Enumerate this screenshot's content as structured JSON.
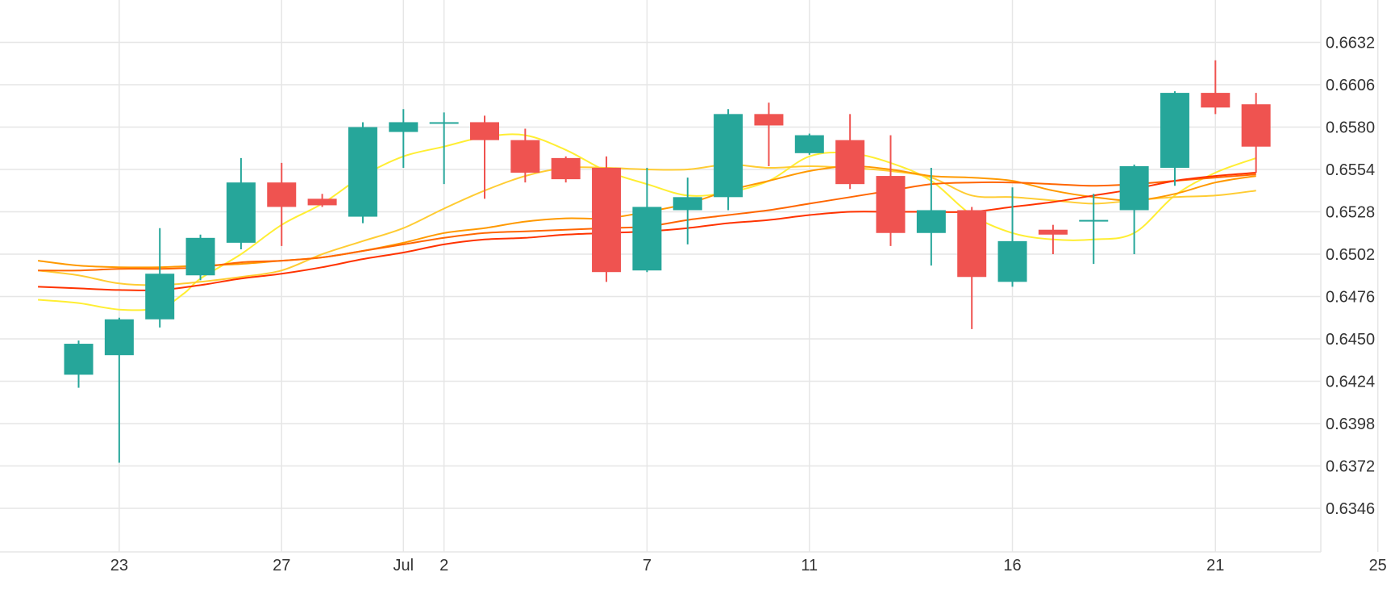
{
  "chart_data": {
    "type": "candlestick",
    "title": "",
    "xlabel": "",
    "ylabel": "",
    "ylim": [
      0.632,
      0.6645
    ],
    "x_tick_labels": [
      {
        "day": 1,
        "label": "23"
      },
      {
        "day": 5,
        "label": "27"
      },
      {
        "day": 8,
        "label": "Jul"
      },
      {
        "day": 9,
        "label": "2"
      },
      {
        "day": 14,
        "label": "7"
      },
      {
        "day": 18,
        "label": "11"
      },
      {
        "day": 23,
        "label": "16"
      },
      {
        "day": 28,
        "label": "21"
      },
      {
        "day": 32,
        "label": "25"
      }
    ],
    "y_tick_labels": [
      "0.6632",
      "0.6606",
      "0.6580",
      "0.6554",
      "0.6528",
      "0.6502",
      "0.6476",
      "0.6450",
      "0.6424",
      "0.6398",
      "0.6372",
      "0.6346"
    ],
    "y_ticks": [
      0.6632,
      0.6606,
      0.658,
      0.6554,
      0.6528,
      0.6502,
      0.6476,
      0.645,
      0.6424,
      0.6398,
      0.6372,
      0.6346
    ],
    "colors": {
      "up": "#26a69a",
      "down": "#ef5350",
      "grid": "#e6e6e6",
      "text": "#333333"
    },
    "candles": [
      {
        "day": 0,
        "open": 0.6428,
        "high": 0.6449,
        "low": 0.642,
        "close": 0.6447
      },
      {
        "day": 1,
        "open": 0.644,
        "high": 0.6463,
        "low": 0.6374,
        "close": 0.6462
      },
      {
        "day": 2,
        "open": 0.6462,
        "high": 0.6518,
        "low": 0.6457,
        "close": 0.649
      },
      {
        "day": 3,
        "open": 0.6489,
        "high": 0.6514,
        "low": 0.6486,
        "close": 0.6512
      },
      {
        "day": 4,
        "open": 0.6509,
        "high": 0.6561,
        "low": 0.6505,
        "close": 0.6546
      },
      {
        "day": 5,
        "open": 0.6546,
        "high": 0.6558,
        "low": 0.6507,
        "close": 0.6531
      },
      {
        "day": 6,
        "open": 0.6536,
        "high": 0.6539,
        "low": 0.6531,
        "close": 0.6532
      },
      {
        "day": 7,
        "open": 0.6525,
        "high": 0.6583,
        "low": 0.6521,
        "close": 0.658
      },
      {
        "day": 8,
        "open": 0.6577,
        "high": 0.6591,
        "low": 0.6555,
        "close": 0.6583
      },
      {
        "day": 9,
        "open": 0.6582,
        "high": 0.6589,
        "low": 0.6545,
        "close": 0.6583
      },
      {
        "day": 10,
        "open": 0.6583,
        "high": 0.6587,
        "low": 0.6536,
        "close": 0.6572
      },
      {
        "day": 11,
        "open": 0.6572,
        "high": 0.6579,
        "low": 0.6546,
        "close": 0.6552
      },
      {
        "day": 12,
        "open": 0.6561,
        "high": 0.6562,
        "low": 0.6546,
        "close": 0.6548
      },
      {
        "day": 13,
        "open": 0.6555,
        "high": 0.6562,
        "low": 0.6485,
        "close": 0.6491
      },
      {
        "day": 14,
        "open": 0.6492,
        "high": 0.6555,
        "low": 0.6491,
        "close": 0.6531
      },
      {
        "day": 15,
        "open": 0.6529,
        "high": 0.6549,
        "low": 0.6508,
        "close": 0.6537
      },
      {
        "day": 16,
        "open": 0.6537,
        "high": 0.6591,
        "low": 0.6529,
        "close": 0.6588
      },
      {
        "day": 17,
        "open": 0.6588,
        "high": 0.6595,
        "low": 0.6556,
        "close": 0.6581
      },
      {
        "day": 18,
        "open": 0.6564,
        "high": 0.6576,
        "low": 0.6563,
        "close": 0.6575
      },
      {
        "day": 19,
        "open": 0.6572,
        "high": 0.6588,
        "low": 0.6542,
        "close": 0.6545
      },
      {
        "day": 20,
        "open": 0.655,
        "high": 0.6575,
        "low": 0.6507,
        "close": 0.6515
      },
      {
        "day": 21,
        "open": 0.6515,
        "high": 0.6555,
        "low": 0.6495,
        "close": 0.6529
      },
      {
        "day": 22,
        "open": 0.6529,
        "high": 0.6531,
        "low": 0.6456,
        "close": 0.6488
      },
      {
        "day": 23,
        "open": 0.6485,
        "high": 0.6543,
        "low": 0.6482,
        "close": 0.651
      },
      {
        "day": 24,
        "open": 0.6517,
        "high": 0.652,
        "low": 0.6502,
        "close": 0.6514
      },
      {
        "day": 25,
        "open": 0.6522,
        "high": 0.6539,
        "low": 0.6496,
        "close": 0.6523
      },
      {
        "day": 26,
        "open": 0.6529,
        "high": 0.6557,
        "low": 0.6502,
        "close": 0.6556
      },
      {
        "day": 27,
        "open": 0.6555,
        "high": 0.6602,
        "low": 0.6544,
        "close": 0.6601
      },
      {
        "day": 28,
        "open": 0.6601,
        "high": 0.6621,
        "low": 0.6588,
        "close": 0.6592
      },
      {
        "day": 29,
        "open": 0.6594,
        "high": 0.6601,
        "low": 0.6552,
        "close": 0.6568
      }
    ],
    "moving_averages": [
      {
        "color": "#ffee33",
        "points": [
          [
            -1,
            0.6474
          ],
          [
            0,
            0.6472
          ],
          [
            1,
            0.6468
          ],
          [
            2,
            0.6469
          ],
          [
            2.6,
            0.6478
          ],
          [
            3,
            0.6487
          ],
          [
            4,
            0.6502
          ],
          [
            5,
            0.652
          ],
          [
            6,
            0.6533
          ],
          [
            7,
            0.655
          ],
          [
            8,
            0.6562
          ],
          [
            9,
            0.6568
          ],
          [
            10,
            0.6574
          ],
          [
            11,
            0.6575
          ],
          [
            12,
            0.6566
          ],
          [
            13,
            0.6553
          ],
          [
            14,
            0.6545
          ],
          [
            15,
            0.6538
          ],
          [
            16,
            0.654
          ],
          [
            17,
            0.6547
          ],
          [
            18,
            0.6562
          ],
          [
            19,
            0.6564
          ],
          [
            20,
            0.6558
          ],
          [
            21,
            0.6547
          ],
          [
            22,
            0.6526
          ],
          [
            23,
            0.6515
          ],
          [
            24,
            0.6511
          ],
          [
            25,
            0.6511
          ],
          [
            26,
            0.6515
          ],
          [
            27,
            0.6538
          ],
          [
            28,
            0.6552
          ],
          [
            29,
            0.6561
          ]
        ]
      },
      {
        "color": "#ffcc33",
        "points": [
          [
            -1,
            0.6492
          ],
          [
            0,
            0.6489
          ],
          [
            1,
            0.6484
          ],
          [
            2,
            0.6483
          ],
          [
            3,
            0.6485
          ],
          [
            4,
            0.6488
          ],
          [
            5,
            0.6492
          ],
          [
            6,
            0.6502
          ],
          [
            7,
            0.651
          ],
          [
            8,
            0.6518
          ],
          [
            9,
            0.653
          ],
          [
            10,
            0.6541
          ],
          [
            11,
            0.655
          ],
          [
            12,
            0.6555
          ],
          [
            13,
            0.6555
          ],
          [
            14,
            0.6554
          ],
          [
            15,
            0.6554
          ],
          [
            16,
            0.6557
          ],
          [
            17,
            0.6555
          ],
          [
            18,
            0.6556
          ],
          [
            19,
            0.6555
          ],
          [
            20,
            0.6553
          ],
          [
            21,
            0.6549
          ],
          [
            22,
            0.6538
          ],
          [
            23,
            0.6537
          ],
          [
            24,
            0.6535
          ],
          [
            25,
            0.6533
          ],
          [
            26,
            0.6535
          ],
          [
            27,
            0.6537
          ],
          [
            28,
            0.6538
          ],
          [
            29,
            0.6541
          ]
        ]
      },
      {
        "color": "#ff9900",
        "points": [
          [
            -1,
            0.6498
          ],
          [
            0,
            0.6495
          ],
          [
            1,
            0.6494
          ],
          [
            2,
            0.6494
          ],
          [
            3,
            0.6495
          ],
          [
            4,
            0.6496
          ],
          [
            5,
            0.6498
          ],
          [
            6,
            0.65
          ],
          [
            7,
            0.6504
          ],
          [
            8,
            0.6509
          ],
          [
            9,
            0.6515
          ],
          [
            10,
            0.6518
          ],
          [
            11,
            0.6522
          ],
          [
            12,
            0.6524
          ],
          [
            13,
            0.6524
          ],
          [
            14,
            0.6528
          ],
          [
            15,
            0.6533
          ],
          [
            16,
            0.6541
          ],
          [
            17,
            0.6547
          ],
          [
            18,
            0.6553
          ],
          [
            19,
            0.6556
          ],
          [
            20,
            0.6554
          ],
          [
            21,
            0.655
          ],
          [
            22,
            0.6549
          ],
          [
            23,
            0.6547
          ],
          [
            24,
            0.6541
          ],
          [
            25,
            0.6537
          ],
          [
            26,
            0.6535
          ],
          [
            27,
            0.6539
          ],
          [
            28,
            0.6546
          ],
          [
            29,
            0.655
          ]
        ]
      },
      {
        "color": "#ff6600",
        "points": [
          [
            -1,
            0.6492
          ],
          [
            0,
            0.6492
          ],
          [
            1,
            0.6493
          ],
          [
            2,
            0.6493
          ],
          [
            3,
            0.6494
          ],
          [
            4,
            0.6497
          ],
          [
            5,
            0.6498
          ],
          [
            6,
            0.65
          ],
          [
            7,
            0.6504
          ],
          [
            8,
            0.6508
          ],
          [
            9,
            0.6512
          ],
          [
            10,
            0.6515
          ],
          [
            11,
            0.6516
          ],
          [
            12,
            0.6517
          ],
          [
            13,
            0.6518
          ],
          [
            14,
            0.6519
          ],
          [
            15,
            0.6523
          ],
          [
            16,
            0.6526
          ],
          [
            17,
            0.6529
          ],
          [
            18,
            0.6533
          ],
          [
            19,
            0.6537
          ],
          [
            20,
            0.6541
          ],
          [
            21,
            0.6545
          ],
          [
            22,
            0.6546
          ],
          [
            23,
            0.6546
          ],
          [
            24,
            0.6545
          ],
          [
            25,
            0.6544
          ],
          [
            26,
            0.6545
          ],
          [
            27,
            0.6547
          ],
          [
            28,
            0.6549
          ],
          [
            29,
            0.6551
          ]
        ]
      },
      {
        "color": "#ff3300",
        "points": [
          [
            -1,
            0.6482
          ],
          [
            0,
            0.6481
          ],
          [
            1,
            0.648
          ],
          [
            2,
            0.648
          ],
          [
            3,
            0.6483
          ],
          [
            4,
            0.6487
          ],
          [
            5,
            0.649
          ],
          [
            6,
            0.6494
          ],
          [
            7,
            0.6499
          ],
          [
            8,
            0.6503
          ],
          [
            9,
            0.6508
          ],
          [
            10,
            0.6511
          ],
          [
            11,
            0.6512
          ],
          [
            12,
            0.6514
          ],
          [
            13,
            0.6515
          ],
          [
            14,
            0.6516
          ],
          [
            15,
            0.6518
          ],
          [
            16,
            0.6521
          ],
          [
            17,
            0.6523
          ],
          [
            18,
            0.6526
          ],
          [
            19,
            0.6528
          ],
          [
            20,
            0.6528
          ],
          [
            21,
            0.6528
          ],
          [
            22,
            0.6528
          ],
          [
            23,
            0.6531
          ],
          [
            24,
            0.6534
          ],
          [
            25,
            0.6538
          ],
          [
            26,
            0.6542
          ],
          [
            27,
            0.6547
          ],
          [
            28,
            0.655
          ],
          [
            29,
            0.6552
          ]
        ]
      }
    ]
  }
}
